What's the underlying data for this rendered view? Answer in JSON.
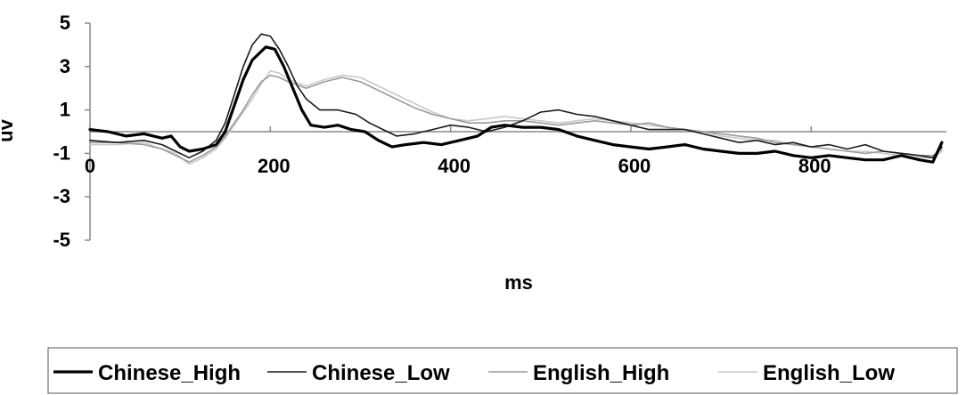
{
  "chart_data": {
    "type": "line",
    "xlabel": "ms",
    "ylabel": "uv",
    "xlim": [
      0,
      950
    ],
    "ylim": [
      -5,
      5
    ],
    "x_ticks": [
      0,
      200,
      400,
      600,
      800
    ],
    "x_tick_labels": [
      "0",
      "200",
      "400",
      "600",
      "800"
    ],
    "y_ticks": [
      5,
      3,
      1,
      -1,
      -3,
      -5
    ],
    "y_tick_labels": [
      "5",
      "3",
      "1",
      "-1",
      "-3",
      "-5"
    ],
    "grid": false,
    "legend_position": "bottom",
    "series": [
      {
        "name": "Chinese_High",
        "color": "#000000",
        "style": "thick",
        "points": [
          [
            0,
            0.1
          ],
          [
            20,
            0
          ],
          [
            40,
            -0.2
          ],
          [
            60,
            -0.1
          ],
          [
            80,
            -0.3
          ],
          [
            90,
            -0.2
          ],
          [
            100,
            -0.7
          ],
          [
            110,
            -0.9
          ],
          [
            125,
            -0.8
          ],
          [
            140,
            -0.6
          ],
          [
            150,
            0
          ],
          [
            160,
            1.2
          ],
          [
            170,
            2.4
          ],
          [
            180,
            3.3
          ],
          [
            195,
            3.9
          ],
          [
            205,
            3.8
          ],
          [
            215,
            3.0
          ],
          [
            225,
            2.0
          ],
          [
            235,
            1.0
          ],
          [
            245,
            0.3
          ],
          [
            260,
            0.2
          ],
          [
            275,
            0.3
          ],
          [
            290,
            0.1
          ],
          [
            305,
            0.0
          ],
          [
            320,
            -0.4
          ],
          [
            335,
            -0.7
          ],
          [
            350,
            -0.6
          ],
          [
            370,
            -0.5
          ],
          [
            390,
            -0.6
          ],
          [
            410,
            -0.4
          ],
          [
            430,
            -0.2
          ],
          [
            445,
            0.2
          ],
          [
            460,
            0.3
          ],
          [
            480,
            0.2
          ],
          [
            500,
            0.2
          ],
          [
            520,
            0.1
          ],
          [
            540,
            -0.2
          ],
          [
            560,
            -0.4
          ],
          [
            580,
            -0.6
          ],
          [
            600,
            -0.7
          ],
          [
            620,
            -0.8
          ],
          [
            640,
            -0.7
          ],
          [
            660,
            -0.6
          ],
          [
            680,
            -0.8
          ],
          [
            700,
            -0.9
          ],
          [
            720,
            -1.0
          ],
          [
            740,
            -1.0
          ],
          [
            760,
            -0.9
          ],
          [
            780,
            -1.1
          ],
          [
            800,
            -1.2
          ],
          [
            820,
            -1.1
          ],
          [
            840,
            -1.2
          ],
          [
            860,
            -1.3
          ],
          [
            880,
            -1.3
          ],
          [
            900,
            -1.1
          ],
          [
            920,
            -1.3
          ],
          [
            935,
            -1.4
          ],
          [
            945,
            -0.5
          ]
        ]
      },
      {
        "name": "Chinese_Low",
        "color": "#1a1a1a",
        "style": "thin",
        "points": [
          [
            0,
            -0.4
          ],
          [
            30,
            -0.5
          ],
          [
            60,
            -0.4
          ],
          [
            80,
            -0.6
          ],
          [
            95,
            -0.9
          ],
          [
            110,
            -1.2
          ],
          [
            125,
            -0.9
          ],
          [
            140,
            -0.4
          ],
          [
            150,
            0.4
          ],
          [
            160,
            1.7
          ],
          [
            170,
            3.0
          ],
          [
            180,
            4.0
          ],
          [
            190,
            4.5
          ],
          [
            200,
            4.4
          ],
          [
            210,
            3.8
          ],
          [
            220,
            3.0
          ],
          [
            230,
            2.1
          ],
          [
            240,
            1.5
          ],
          [
            255,
            1.0
          ],
          [
            275,
            1.0
          ],
          [
            295,
            0.8
          ],
          [
            310,
            0.4
          ],
          [
            325,
            0.1
          ],
          [
            340,
            -0.2
          ],
          [
            360,
            -0.1
          ],
          [
            380,
            0.1
          ],
          [
            400,
            0.3
          ],
          [
            420,
            0.2
          ],
          [
            440,
            0.0
          ],
          [
            460,
            0.2
          ],
          [
            480,
            0.5
          ],
          [
            500,
            0.9
          ],
          [
            520,
            1.0
          ],
          [
            540,
            0.8
          ],
          [
            560,
            0.7
          ],
          [
            580,
            0.5
          ],
          [
            600,
            0.3
          ],
          [
            620,
            0.1
          ],
          [
            640,
            0.1
          ],
          [
            660,
            0.1
          ],
          [
            680,
            -0.1
          ],
          [
            700,
            -0.3
          ],
          [
            720,
            -0.5
          ],
          [
            740,
            -0.4
          ],
          [
            760,
            -0.6
          ],
          [
            780,
            -0.5
          ],
          [
            800,
            -0.7
          ],
          [
            820,
            -0.6
          ],
          [
            840,
            -0.8
          ],
          [
            860,
            -0.6
          ],
          [
            880,
            -0.9
          ],
          [
            900,
            -1.0
          ],
          [
            920,
            -1.1
          ],
          [
            935,
            -1.2
          ],
          [
            945,
            -0.7
          ]
        ]
      },
      {
        "name": "English_High",
        "color": "#9a9a9a",
        "style": "thin",
        "points": [
          [
            0,
            -0.5
          ],
          [
            30,
            -0.5
          ],
          [
            60,
            -0.6
          ],
          [
            80,
            -0.8
          ],
          [
            95,
            -1.1
          ],
          [
            110,
            -1.4
          ],
          [
            125,
            -1.1
          ],
          [
            140,
            -0.7
          ],
          [
            150,
            -0.2
          ],
          [
            160,
            0.4
          ],
          [
            170,
            1.0
          ],
          [
            180,
            1.7
          ],
          [
            190,
            2.3
          ],
          [
            200,
            2.6
          ],
          [
            210,
            2.5
          ],
          [
            220,
            2.3
          ],
          [
            240,
            2.0
          ],
          [
            260,
            2.3
          ],
          [
            280,
            2.5
          ],
          [
            300,
            2.3
          ],
          [
            320,
            1.9
          ],
          [
            340,
            1.5
          ],
          [
            360,
            1.1
          ],
          [
            380,
            0.8
          ],
          [
            400,
            0.6
          ],
          [
            420,
            0.4
          ],
          [
            440,
            0.4
          ],
          [
            460,
            0.5
          ],
          [
            480,
            0.5
          ],
          [
            500,
            0.4
          ],
          [
            520,
            0.3
          ],
          [
            540,
            0.4
          ],
          [
            560,
            0.5
          ],
          [
            580,
            0.4
          ],
          [
            600,
            0.3
          ],
          [
            620,
            0.4
          ],
          [
            640,
            0.2
          ],
          [
            660,
            0.1
          ],
          [
            680,
            0.0
          ],
          [
            700,
            -0.1
          ],
          [
            720,
            -0.2
          ],
          [
            740,
            -0.3
          ],
          [
            760,
            -0.5
          ],
          [
            780,
            -0.6
          ],
          [
            800,
            -0.7
          ],
          [
            820,
            -0.8
          ],
          [
            840,
            -0.9
          ],
          [
            860,
            -1.0
          ],
          [
            880,
            -0.9
          ],
          [
            900,
            -1.0
          ],
          [
            920,
            -1.1
          ],
          [
            935,
            -1.1
          ],
          [
            945,
            -0.8
          ]
        ]
      },
      {
        "name": "English_Low",
        "color": "#c8c8c8",
        "style": "thin",
        "points": [
          [
            0,
            -0.6
          ],
          [
            30,
            -0.6
          ],
          [
            60,
            -0.5
          ],
          [
            80,
            -0.8
          ],
          [
            95,
            -1.0
          ],
          [
            110,
            -1.5
          ],
          [
            125,
            -1.2
          ],
          [
            140,
            -0.8
          ],
          [
            150,
            -0.3
          ],
          [
            160,
            0.3
          ],
          [
            170,
            0.9
          ],
          [
            180,
            1.5
          ],
          [
            190,
            2.2
          ],
          [
            200,
            2.8
          ],
          [
            210,
            2.7
          ],
          [
            220,
            2.4
          ],
          [
            240,
            2.1
          ],
          [
            260,
            2.4
          ],
          [
            280,
            2.6
          ],
          [
            300,
            2.5
          ],
          [
            320,
            2.1
          ],
          [
            340,
            1.7
          ],
          [
            360,
            1.3
          ],
          [
            380,
            0.9
          ],
          [
            400,
            0.6
          ],
          [
            420,
            0.5
          ],
          [
            440,
            0.6
          ],
          [
            460,
            0.7
          ],
          [
            480,
            0.6
          ],
          [
            500,
            0.5
          ],
          [
            520,
            0.4
          ],
          [
            540,
            0.5
          ],
          [
            560,
            0.6
          ],
          [
            580,
            0.5
          ],
          [
            600,
            0.4
          ],
          [
            620,
            0.3
          ],
          [
            640,
            0.2
          ],
          [
            660,
            0.1
          ],
          [
            680,
            0.0
          ],
          [
            700,
            -0.2
          ],
          [
            720,
            -0.3
          ],
          [
            740,
            -0.4
          ],
          [
            760,
            -0.4
          ],
          [
            780,
            -0.6
          ],
          [
            800,
            -0.7
          ],
          [
            820,
            -0.8
          ],
          [
            840,
            -0.9
          ],
          [
            860,
            -0.9
          ],
          [
            880,
            -1.0
          ],
          [
            900,
            -1.1
          ],
          [
            920,
            -1.2
          ],
          [
            935,
            -1.2
          ],
          [
            945,
            -0.9
          ]
        ]
      }
    ]
  }
}
